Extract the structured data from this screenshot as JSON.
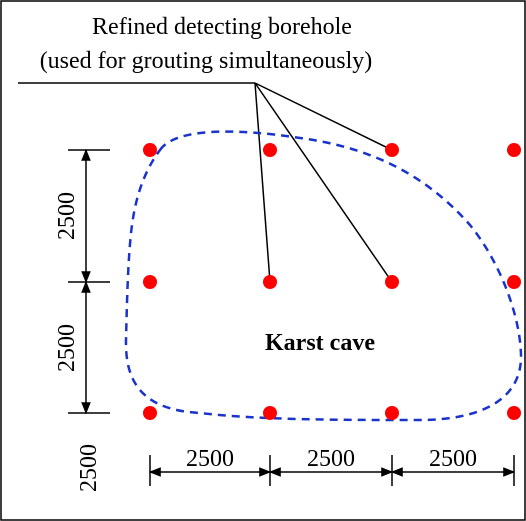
{
  "callout": {
    "line1": "Refined detecting borehole",
    "line2": "(used for grouting simultaneously)"
  },
  "cave_label": "Karst cave",
  "dimensions": {
    "vertical": [
      "2500",
      "2500",
      "2500"
    ],
    "horizontal": [
      "2500",
      "2500",
      "2500"
    ]
  },
  "colors": {
    "borehole": "#ff0000",
    "cave_outline": "#1a33cc",
    "lines": "#000000"
  },
  "grid": {
    "rows": 3,
    "columns": 4
  }
}
